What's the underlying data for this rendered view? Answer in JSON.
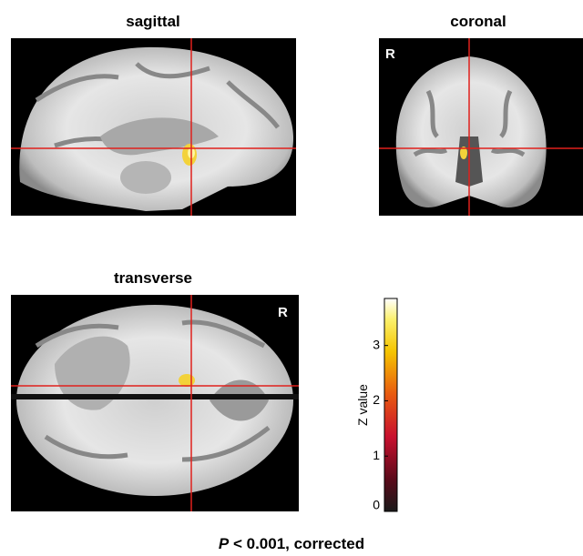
{
  "panels": [
    {
      "title": "sagittal"
    },
    {
      "title": "coronal",
      "marker": "R"
    },
    {
      "title": "transverse",
      "marker": "R"
    }
  ],
  "colorbar": {
    "label": "Z value",
    "lim": [
      0,
      3.85
    ],
    "ticks": [
      0,
      1,
      2,
      3
    ]
  },
  "footnote": {
    "italic": "P",
    "text": "< 0.001, corrected"
  }
}
